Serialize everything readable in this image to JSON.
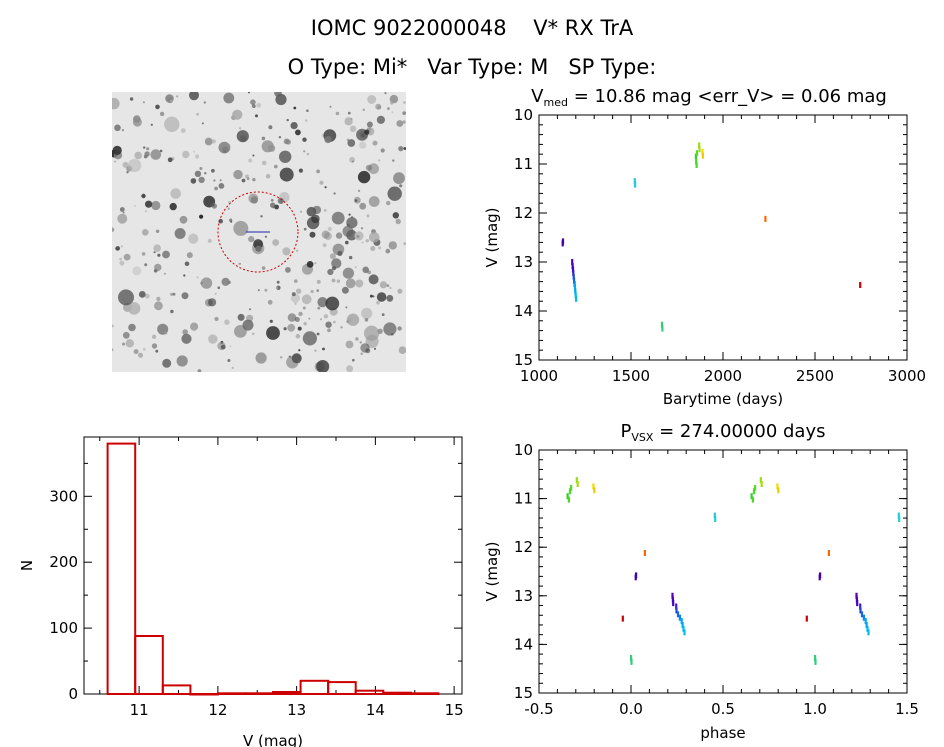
{
  "header": {
    "title": "IOMC 9022000048    V* RX TrA",
    "subtitle": "O Type: Mi*   Var Type: M   SP Type:"
  },
  "image_panel": {
    "description_icon": "star-field-thumbnail-icon"
  },
  "colors": {
    "axis": "#000000",
    "histogram": "#cc0000",
    "circle": "#cc0000",
    "background": "#ffffff"
  },
  "chart_data": [
    {
      "id": "lightcurve",
      "type": "scatter",
      "title_parts": {
        "V": "V",
        "sub": "med",
        "rest": " = 10.86 mag <err_V> = 0.06 mag"
      },
      "xlabel": "Barytime (days)",
      "ylabel": "V (mag)",
      "xlim": [
        1000,
        3000
      ],
      "ylim": [
        15,
        10
      ],
      "xticks": [
        1000,
        1500,
        2000,
        2500,
        3000
      ],
      "yticks": [
        10,
        11,
        12,
        13,
        14,
        15
      ],
      "points": [
        {
          "x": 1128,
          "y": 12.62,
          "c": "#4400aa"
        },
        {
          "x": 1130,
          "y": 12.58,
          "c": "#4400aa"
        },
        {
          "x": 1180,
          "y": 13.0,
          "c": "#5500bb"
        },
        {
          "x": 1182,
          "y": 13.08,
          "c": "#5500bb"
        },
        {
          "x": 1184,
          "y": 13.15,
          "c": "#4400cc"
        },
        {
          "x": 1186,
          "y": 13.22,
          "c": "#3322cc"
        },
        {
          "x": 1188,
          "y": 13.3,
          "c": "#2244dd"
        },
        {
          "x": 1190,
          "y": 13.38,
          "c": "#1166dd"
        },
        {
          "x": 1193,
          "y": 13.45,
          "c": "#0088ee"
        },
        {
          "x": 1195,
          "y": 13.52,
          "c": "#00aaee"
        },
        {
          "x": 1197,
          "y": 13.6,
          "c": "#00aaee"
        },
        {
          "x": 1199,
          "y": 13.68,
          "c": "#00bbee"
        },
        {
          "x": 1201,
          "y": 13.75,
          "c": "#00bbee"
        },
        {
          "x": 1520,
          "y": 11.35,
          "c": "#22ccdd"
        },
        {
          "x": 1522,
          "y": 11.42,
          "c": "#22ccdd"
        },
        {
          "x": 1668,
          "y": 14.28,
          "c": "#33cc77"
        },
        {
          "x": 1670,
          "y": 14.36,
          "c": "#33cc77"
        },
        {
          "x": 1852,
          "y": 10.85,
          "c": "#33cc33"
        },
        {
          "x": 1854,
          "y": 10.95,
          "c": "#44dd22"
        },
        {
          "x": 1856,
          "y": 11.02,
          "c": "#44dd22"
        },
        {
          "x": 1858,
          "y": 10.78,
          "c": "#55dd22"
        },
        {
          "x": 1870,
          "y": 10.62,
          "c": "#99dd11"
        },
        {
          "x": 1872,
          "y": 10.7,
          "c": "#aadd11"
        },
        {
          "x": 1888,
          "y": 10.75,
          "c": "#eedd00"
        },
        {
          "x": 1890,
          "y": 10.83,
          "c": "#eecc00"
        },
        {
          "x": 2230,
          "y": 12.12,
          "c": "#ff6600"
        },
        {
          "x": 2745,
          "y": 13.47,
          "c": "#cc0000"
        }
      ]
    },
    {
      "id": "phased",
      "type": "scatter",
      "title_parts": {
        "P": "P",
        "sub": "VSX",
        "rest": " = 274.00000 days"
      },
      "xlabel": "phase",
      "ylabel": "V (mag)",
      "xlim": [
        -0.5,
        1.5
      ],
      "ylim": [
        15,
        10
      ],
      "xticks": [
        -0.5,
        0.0,
        0.5,
        1.0,
        1.5
      ],
      "xticklabels": [
        "-0.5",
        "0.0",
        "0.5",
        "1.0",
        "1.5"
      ],
      "yticks": [
        10,
        11,
        12,
        13,
        14,
        15
      ],
      "points": [
        {
          "x": -0.345,
          "y": 10.95,
          "c": "#33cc33"
        },
        {
          "x": -0.338,
          "y": 11.02,
          "c": "#44dd22"
        },
        {
          "x": -0.332,
          "y": 10.85,
          "c": "#44dd22"
        },
        {
          "x": -0.326,
          "y": 10.78,
          "c": "#55dd22"
        },
        {
          "x": -0.295,
          "y": 10.62,
          "c": "#99dd11"
        },
        {
          "x": -0.29,
          "y": 10.7,
          "c": "#aadd11"
        },
        {
          "x": -0.205,
          "y": 10.75,
          "c": "#eedd00"
        },
        {
          "x": -0.2,
          "y": 10.83,
          "c": "#eecc00"
        },
        {
          "x": -0.045,
          "y": 13.47,
          "c": "#cc0000"
        },
        {
          "x": 0.0,
          "y": 14.28,
          "c": "#33cc77"
        },
        {
          "x": 0.002,
          "y": 14.36,
          "c": "#33cc77"
        },
        {
          "x": 0.025,
          "y": 12.62,
          "c": "#4400aa"
        },
        {
          "x": 0.027,
          "y": 12.58,
          "c": "#4400aa"
        },
        {
          "x": 0.075,
          "y": 12.12,
          "c": "#ff6600"
        },
        {
          "x": 0.225,
          "y": 13.0,
          "c": "#5500bb"
        },
        {
          "x": 0.227,
          "y": 13.08,
          "c": "#5500bb"
        },
        {
          "x": 0.229,
          "y": 13.15,
          "c": "#4400cc"
        },
        {
          "x": 0.245,
          "y": 13.22,
          "c": "#3322cc"
        },
        {
          "x": 0.247,
          "y": 13.3,
          "c": "#2244dd"
        },
        {
          "x": 0.255,
          "y": 13.38,
          "c": "#1166dd"
        },
        {
          "x": 0.265,
          "y": 13.45,
          "c": "#0088ee"
        },
        {
          "x": 0.275,
          "y": 13.52,
          "c": "#00aaee"
        },
        {
          "x": 0.28,
          "y": 13.6,
          "c": "#00aaee"
        },
        {
          "x": 0.285,
          "y": 13.68,
          "c": "#00bbee"
        },
        {
          "x": 0.29,
          "y": 13.75,
          "c": "#00bbee"
        },
        {
          "x": 0.455,
          "y": 11.35,
          "c": "#22ccdd"
        },
        {
          "x": 0.457,
          "y": 11.42,
          "c": "#22ccdd"
        },
        {
          "x": 0.655,
          "y": 10.95,
          "c": "#33cc33"
        },
        {
          "x": 0.662,
          "y": 11.02,
          "c": "#44dd22"
        },
        {
          "x": 0.668,
          "y": 10.85,
          "c": "#44dd22"
        },
        {
          "x": 0.674,
          "y": 10.78,
          "c": "#55dd22"
        },
        {
          "x": 0.705,
          "y": 10.62,
          "c": "#99dd11"
        },
        {
          "x": 0.71,
          "y": 10.7,
          "c": "#aadd11"
        },
        {
          "x": 0.795,
          "y": 10.75,
          "c": "#eedd00"
        },
        {
          "x": 0.8,
          "y": 10.83,
          "c": "#eecc00"
        },
        {
          "x": 0.955,
          "y": 13.47,
          "c": "#cc0000"
        },
        {
          "x": 1.0,
          "y": 14.28,
          "c": "#33cc77"
        },
        {
          "x": 1.002,
          "y": 14.36,
          "c": "#33cc77"
        },
        {
          "x": 1.025,
          "y": 12.62,
          "c": "#4400aa"
        },
        {
          "x": 1.027,
          "y": 12.58,
          "c": "#4400aa"
        },
        {
          "x": 1.075,
          "y": 12.12,
          "c": "#ff6600"
        },
        {
          "x": 1.225,
          "y": 13.0,
          "c": "#5500bb"
        },
        {
          "x": 1.227,
          "y": 13.08,
          "c": "#5500bb"
        },
        {
          "x": 1.229,
          "y": 13.15,
          "c": "#4400cc"
        },
        {
          "x": 1.245,
          "y": 13.22,
          "c": "#3322cc"
        },
        {
          "x": 1.247,
          "y": 13.3,
          "c": "#2244dd"
        },
        {
          "x": 1.255,
          "y": 13.38,
          "c": "#1166dd"
        },
        {
          "x": 1.265,
          "y": 13.45,
          "c": "#0088ee"
        },
        {
          "x": 1.275,
          "y": 13.52,
          "c": "#00aaee"
        },
        {
          "x": 1.28,
          "y": 13.6,
          "c": "#00aaee"
        },
        {
          "x": 1.285,
          "y": 13.68,
          "c": "#00bbee"
        },
        {
          "x": 1.29,
          "y": 13.75,
          "c": "#00bbee"
        },
        {
          "x": 1.455,
          "y": 11.35,
          "c": "#22ccdd"
        },
        {
          "x": 1.457,
          "y": 11.42,
          "c": "#22ccdd"
        }
      ]
    },
    {
      "id": "histogram",
      "type": "bar",
      "title": "",
      "xlabel": "V (mag)",
      "ylabel": "N",
      "xlim": [
        10.3,
        15.1
      ],
      "ylim": [
        0,
        390
      ],
      "xticks": [
        11,
        12,
        13,
        14,
        15
      ],
      "yticks": [
        0,
        100,
        200,
        300
      ],
      "bins": [
        {
          "x0": 10.6,
          "x1": 10.95,
          "value": 380
        },
        {
          "x0": 10.95,
          "x1": 11.3,
          "value": 88
        },
        {
          "x0": 11.3,
          "x1": 11.65,
          "value": 13
        },
        {
          "x0": 11.65,
          "x1": 12.0,
          "value": 0
        },
        {
          "x0": 12.0,
          "x1": 12.35,
          "value": 1
        },
        {
          "x0": 12.35,
          "x1": 12.7,
          "value": 1
        },
        {
          "x0": 12.7,
          "x1": 13.05,
          "value": 3
        },
        {
          "x0": 13.05,
          "x1": 13.4,
          "value": 20
        },
        {
          "x0": 13.4,
          "x1": 13.75,
          "value": 18
        },
        {
          "x0": 13.75,
          "x1": 14.1,
          "value": 5
        },
        {
          "x0": 14.1,
          "x1": 14.45,
          "value": 2
        },
        {
          "x0": 14.45,
          "x1": 14.8,
          "value": 1
        }
      ]
    }
  ]
}
